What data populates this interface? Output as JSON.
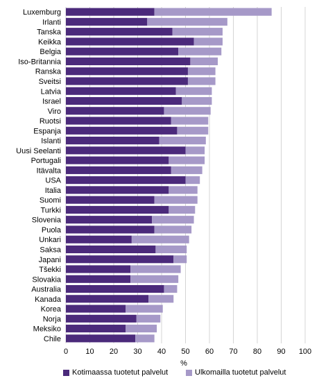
{
  "chart_data": {
    "type": "bar",
    "orientation": "horizontal",
    "stacked": true,
    "categories": [
      "Luxemburg",
      "Irlanti",
      "Tanska",
      "Keikka",
      "Belgia",
      "Iso-Britannia",
      "Ranska",
      "Sveitsi",
      "Latvia",
      "Israel",
      "Viro",
      "Ruotsi",
      "Espanja",
      "Islanti",
      "Uusi Seelanti",
      "Portugali",
      "Itävalta",
      "USA",
      "Italia",
      "Suomi",
      "Turkki",
      "Slovenia",
      "Puola",
      "Unkari",
      "Saksa",
      "Japani",
      "Tšekki",
      "Slovakia",
      "Australia",
      "Kanada",
      "Korea",
      "Norja",
      "Meksiko",
      "Chile"
    ],
    "series": [
      {
        "name": "Kotimaassa tuotetut palvelut",
        "color": "#4b2a7b",
        "values": [
          37,
          34,
          44.5,
          53.5,
          47,
          52,
          51,
          51,
          46,
          48.5,
          41,
          44,
          46.5,
          39,
          50,
          43,
          44,
          50,
          43,
          37,
          43,
          36,
          37,
          27.5,
          37.5,
          45,
          27,
          27,
          41,
          34.5,
          25,
          29.5,
          25,
          29
        ]
      },
      {
        "name": "Ulkomailla tuotetut palvelut",
        "color": "#a699c8",
        "values": [
          49,
          33.5,
          21,
          12,
          18,
          11.5,
          11.5,
          11.5,
          15,
          12.5,
          19.5,
          15.5,
          13,
          19.5,
          8,
          15,
          13,
          6,
          12,
          18,
          11,
          17.5,
          15.5,
          24,
          13,
          5.5,
          21,
          20,
          5.5,
          10.5,
          15.5,
          10,
          13,
          8
        ]
      }
    ],
    "xlim": [
      0,
      100
    ],
    "xticks": [
      0,
      10,
      20,
      30,
      40,
      50,
      60,
      70,
      80,
      90,
      100
    ],
    "xlabel": "%",
    "grid": "vertical",
    "legend": "bottom"
  }
}
